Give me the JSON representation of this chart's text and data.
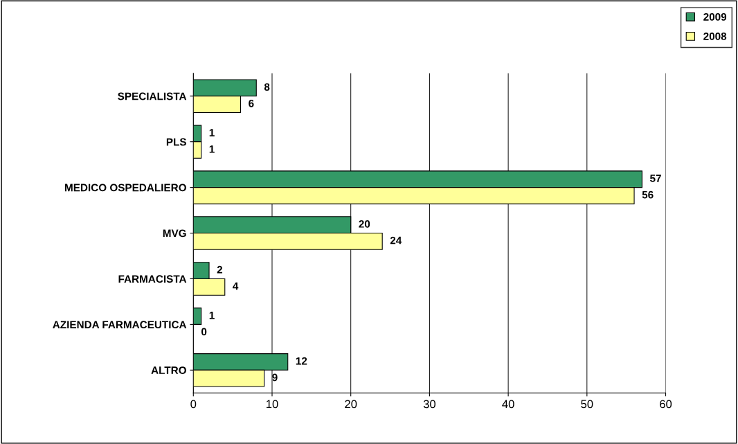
{
  "chart_data": {
    "type": "bar",
    "orientation": "horizontal",
    "categories": [
      "SPECIALISTA",
      "PLS",
      "MEDICO OSPEDALIERO",
      "MVG",
      "FARMACISTA",
      "AZIENDA FARMACEUTICA",
      "ALTRO"
    ],
    "series": [
      {
        "name": "2009",
        "color": "#339966",
        "values": [
          8,
          1,
          57,
          20,
          2,
          1,
          12
        ]
      },
      {
        "name": "2008",
        "color": "#ffff99",
        "values": [
          6,
          1,
          56,
          24,
          4,
          0,
          9
        ]
      }
    ],
    "xlim": [
      0,
      60
    ],
    "xticks": [
      0,
      10,
      20,
      30,
      40,
      50,
      60
    ],
    "grid": "x",
    "legend": "top right",
    "data_labels": true
  }
}
